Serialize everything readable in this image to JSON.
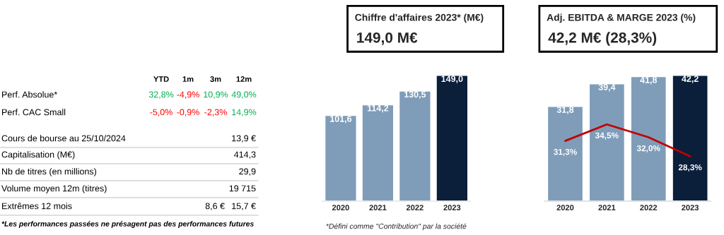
{
  "chart_data": [
    {
      "type": "other",
      "annotations": [
        "YTD",
        "1m",
        "3m",
        "12m",
        "Perf. Absolue*",
        "32,8%",
        "-4,9%",
        "10,9%",
        "49,0%",
        "Perf. CAC Small",
        "-5,0%",
        "-0,9%",
        "-2,3%",
        "14,9%",
        "Cours de bourse au 25/10/2024",
        "13,9 €",
        "Capitalisation (M€)",
        "414,3",
        "Nb de titres (en millions)",
        "29,9",
        "Volume moyen 12m (titres)",
        "19 715",
        "Extrêmes 12 mois",
        "8,6 €",
        "15,7 €",
        "*Les performances passées ne présagent pas des performances futures"
      ],
      "colors": [
        "#000000",
        "#000000",
        "#000000",
        "#000000",
        "#000000",
        "#00b050",
        "#ff0000",
        "#00b050",
        "#00b050",
        "#000000",
        "#ff0000",
        "#ff0000",
        "#ff0000",
        "#00b050",
        "#000000",
        "#000000",
        "#000000",
        "#000000",
        "#000000",
        "#000000",
        "#000000",
        "#000000",
        "#000000",
        "#000000",
        "#000000",
        "#000000"
      ]
    },
    {
      "type": "bar",
      "title": "Chiffre d'affaires 2023* (M€)",
      "subtitle": "149,0 M€",
      "categories": [
        "2020",
        "2021",
        "2022",
        "2023"
      ],
      "values": [
        101.6,
        114.2,
        130.5,
        149.0
      ],
      "colors": [
        "#7f9db9",
        "#7f9db9",
        "#7f9db9",
        "#0b1f3a"
      ],
      "value_labels": [
        "101,6",
        "114,2",
        "130,5",
        "149,0"
      ],
      "ylim": [
        0,
        149
      ],
      "tick_labels": "x",
      "annotations": [
        "*Défini comme \"Contribution\" par la société"
      ]
    },
    {
      "type": "bar",
      "title": "Adj. EBITDA & MARGE 2023 (%)",
      "subtitle": "42,2 M€ (28,3%)",
      "categories": [
        "2020",
        "2021",
        "2022",
        "2023"
      ],
      "series": [
        {
          "type": "bar",
          "colors": [
            "#7f9db9",
            "#7f9db9",
            "#7f9db9",
            "#0b1f3a"
          ],
          "values": [
            31.8,
            39.4,
            41.8,
            42.2
          ],
          "value_labels": [
            "31,8",
            "39,4",
            "41,8",
            "42,2"
          ]
        },
        {
          "type": "line",
          "axis": "y2",
          "color": "#c00000",
          "values": [
            31.3,
            34.5,
            32.0,
            28.3
          ],
          "value_labels": [
            "31,3%",
            "34,5%",
            "32,0%",
            "28,3%"
          ]
        }
      ],
      "ylim": [
        0,
        42.2
      ],
      "y2lim": [
        19.6,
        44
      ],
      "tick_labels": "x"
    }
  ]
}
